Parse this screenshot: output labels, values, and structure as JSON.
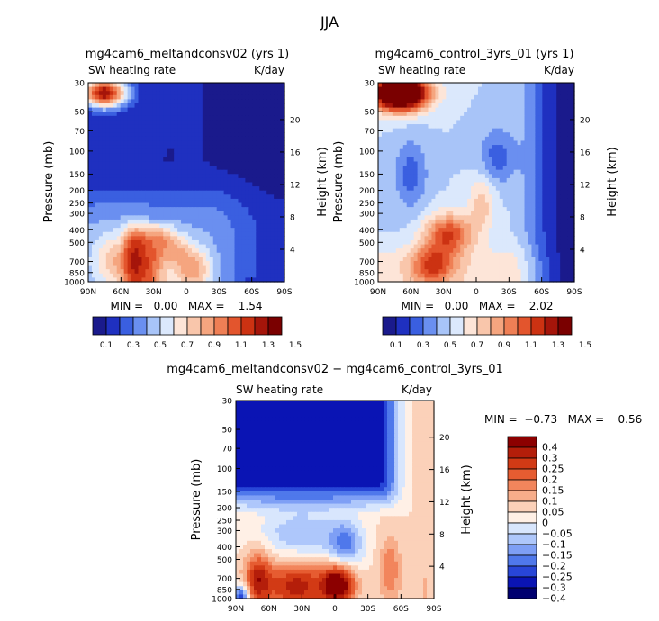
{
  "page": {
    "title": "JJA"
  },
  "palettes": {
    "abs": [
      "#1a1a8c",
      "#1f30c0",
      "#3a5fe0",
      "#6a8ff0",
      "#a8c4f8",
      "#dbe8fc",
      "#fde5d8",
      "#f9c6ab",
      "#f5a57f",
      "#ef7f55",
      "#e3552d",
      "#cc3212",
      "#a5150a",
      "#7a0000"
    ],
    "diff": [
      "#000070",
      "#0a14b4",
      "#2846d7",
      "#4f78eb",
      "#7e9ff5",
      "#aec7fb",
      "#d8e6fd",
      "#fff0e6",
      "#fbd1b9",
      "#f7ad8a",
      "#f2855c",
      "#e65c31",
      "#d23a15",
      "#b41e0a",
      "#8c0000"
    ]
  },
  "chart_data": [
    {
      "id": "p1",
      "type": "heatmap",
      "title": "mg4cam6_meltandconsv02 (yrs 1)",
      "left_string": "SW heating rate",
      "right_string": "K/day",
      "ylabel": "Pressure (mb)",
      "y2label": "Height (km)",
      "xticks": [
        "90N",
        "60N",
        "30N",
        "0",
        "30S",
        "60S",
        "90S"
      ],
      "yticks": [
        "30",
        "50",
        "70",
        "100",
        "150",
        "200",
        "250",
        "300",
        "400",
        "500",
        "700",
        "850",
        "1000"
      ],
      "y2ticks": [
        "20",
        "16",
        "12",
        "8",
        "4"
      ],
      "ylim": [
        1000,
        30
      ],
      "stats": "MIN =   0.00   MAX =    1.54",
      "legend_labels": [
        "0.1",
        "0.3",
        "0.5",
        "0.7",
        "0.9",
        "1.1",
        "1.3",
        "1.5"
      ],
      "levels": [
        0.1,
        0.2,
        0.3,
        0.4,
        0.5,
        0.6,
        0.7,
        0.8,
        0.9,
        1.0,
        1.1,
        1.2,
        1.3,
        1.4,
        1.5
      ]
    },
    {
      "id": "p2",
      "type": "heatmap",
      "title": "mg4cam6_control_3yrs_01 (yrs 1)",
      "left_string": "SW heating rate",
      "right_string": "K/day",
      "ylabel": "Pressure (mb)",
      "y2label": "Height (km)",
      "xticks": [
        "90N",
        "60N",
        "30N",
        "0",
        "30S",
        "60S",
        "90S"
      ],
      "yticks": [
        "30",
        "50",
        "70",
        "100",
        "150",
        "200",
        "250",
        "300",
        "400",
        "500",
        "700",
        "850",
        "1000"
      ],
      "y2ticks": [
        "20",
        "16",
        "12",
        "8",
        "4"
      ],
      "ylim": [
        1000,
        30
      ],
      "stats": "MIN =   0.00   MAX =    2.02",
      "legend_labels": [
        "0.1",
        "0.3",
        "0.5",
        "0.7",
        "0.9",
        "1.1",
        "1.3",
        "1.5"
      ],
      "levels": [
        0.1,
        0.2,
        0.3,
        0.4,
        0.5,
        0.6,
        0.7,
        0.8,
        0.9,
        1.0,
        1.1,
        1.2,
        1.3,
        1.4,
        1.5
      ]
    },
    {
      "id": "p3",
      "type": "heatmap",
      "title": "mg4cam6_meltandconsv02 − mg4cam6_control_3yrs_01",
      "left_string": "SW heating rate",
      "right_string": "K/day",
      "ylabel": "Pressure (mb)",
      "y2label": "Height (km)",
      "xticks": [
        "90N",
        "60N",
        "30N",
        "0",
        "30S",
        "60S",
        "90S"
      ],
      "yticks": [
        "30",
        "50",
        "70",
        "100",
        "150",
        "200",
        "250",
        "300",
        "400",
        "500",
        "700",
        "850",
        "1000"
      ],
      "y2ticks": [
        "20",
        "16",
        "12",
        "8",
        "4"
      ],
      "ylim": [
        1000,
        30
      ],
      "stats": "MIN =  −0.73   MAX =    0.56",
      "legend_labels": [
        "0.4",
        "0.3",
        "0.25",
        "0.2",
        "0.15",
        "0.1",
        "0.05",
        "0",
        "−0.05",
        "−0.1",
        "−0.15",
        "−0.2",
        "−0.25",
        "−0.3",
        "−0.4"
      ]
    }
  ]
}
